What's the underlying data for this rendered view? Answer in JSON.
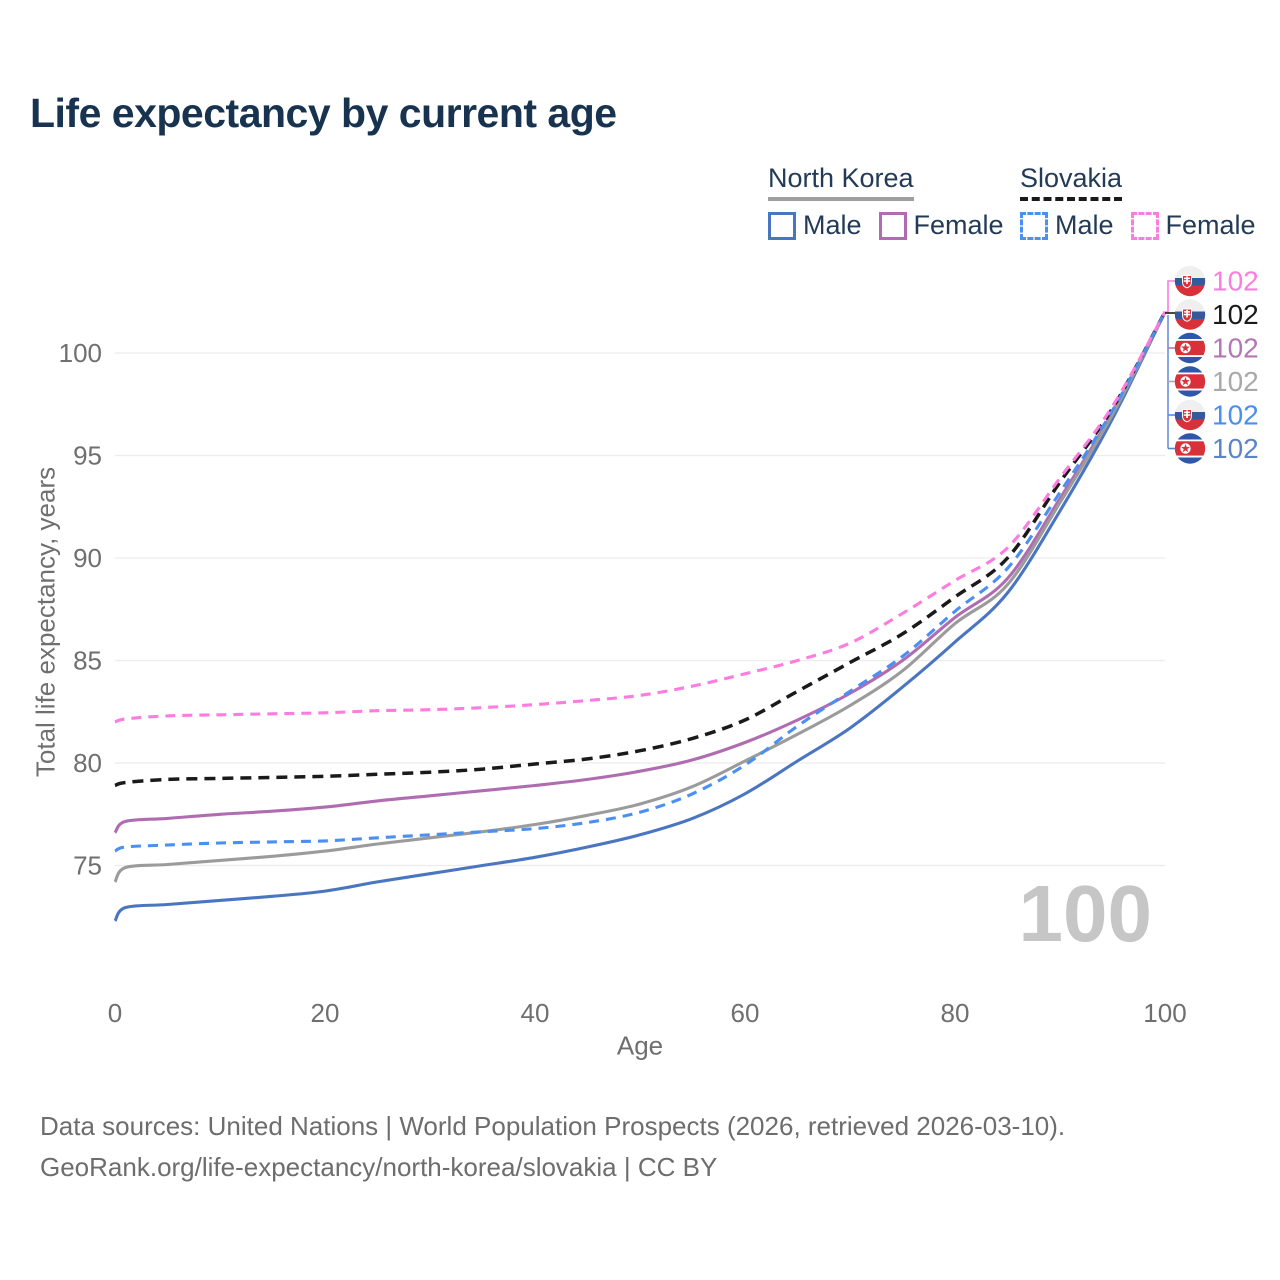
{
  "header": {
    "title": "Life expectancy by current age"
  },
  "legend": {
    "groups": [
      {
        "country": "North Korea",
        "line_style": "solid",
        "underline_color": "#9e9e9e",
        "items": [
          {
            "label": "Male",
            "color": "#4a76c1"
          },
          {
            "label": "Female",
            "color": "#b06cb1"
          }
        ]
      },
      {
        "country": "Slovakia",
        "line_style": "dashed",
        "underline_color": "#1a1a1a",
        "items": [
          {
            "label": "Male",
            "color": "#4a8ff2"
          },
          {
            "label": "Female",
            "color": "#fc7ce0"
          }
        ]
      }
    ]
  },
  "chart_data": {
    "type": "line",
    "title": "Life expectancy by current age",
    "xlabel": "Age",
    "ylabel": "Total life expectancy, years",
    "xlim": [
      0,
      100
    ],
    "ylim": [
      71.5,
      103.5
    ],
    "x_ticks": [
      0,
      20,
      40,
      60,
      80,
      100
    ],
    "y_ticks": [
      75,
      80,
      85,
      90,
      95,
      100
    ],
    "grid": "horizontal-only",
    "legend_position": "top-right",
    "age_counter_watermark": "100",
    "x": [
      0,
      1,
      5,
      10,
      15,
      20,
      25,
      30,
      35,
      40,
      45,
      50,
      55,
      60,
      65,
      70,
      75,
      80,
      85,
      90,
      95,
      100
    ],
    "series": [
      {
        "country": "North Korea",
        "legend_key": "Male",
        "color": "#4a76c1",
        "dash": "solid",
        "values": [
          72.3,
          72.95,
          73.1,
          73.3,
          73.5,
          73.75,
          74.2,
          74.6,
          75.0,
          75.4,
          75.9,
          76.5,
          77.3,
          78.5,
          80.1,
          81.7,
          83.7,
          85.9,
          88.3,
          92.3,
          96.8,
          102
        ]
      },
      {
        "country": "North Korea",
        "legend_key": "Female",
        "color": "#b06cb1",
        "dash": "solid",
        "values": [
          76.6,
          77.15,
          77.3,
          77.5,
          77.65,
          77.85,
          78.15,
          78.4,
          78.65,
          78.9,
          79.2,
          79.6,
          80.15,
          81.0,
          82.1,
          83.4,
          85.0,
          87.1,
          89.0,
          92.9,
          97.1,
          102
        ]
      },
      {
        "country": "North Korea",
        "legend_key": "North Korea",
        "color": "#9b9b9b",
        "dash": "solid",
        "values": [
          74.2,
          74.9,
          75.05,
          75.25,
          75.45,
          75.7,
          76.05,
          76.35,
          76.65,
          77.0,
          77.45,
          78.0,
          78.85,
          80.1,
          81.4,
          82.8,
          84.5,
          86.8,
          88.7,
          92.7,
          97.0,
          102
        ]
      },
      {
        "country": "Slovakia",
        "legend_key": "Slovakia",
        "color": "#1a1a1a",
        "dash": "11 7",
        "values": [
          78.9,
          79.05,
          79.2,
          79.25,
          79.3,
          79.35,
          79.45,
          79.55,
          79.7,
          79.95,
          80.2,
          80.6,
          81.2,
          82.1,
          83.5,
          84.9,
          86.3,
          88.1,
          90.0,
          93.7,
          97.3,
          102
        ]
      },
      {
        "country": "Slovakia",
        "legend_key": "Male",
        "color": "#4a8ff2",
        "dash": "10 7",
        "values": [
          75.7,
          75.9,
          76.0,
          76.1,
          76.15,
          76.2,
          76.35,
          76.5,
          76.65,
          76.8,
          77.1,
          77.6,
          78.5,
          79.9,
          81.8,
          83.5,
          85.2,
          87.4,
          89.5,
          93.2,
          97.2,
          102
        ]
      },
      {
        "country": "Slovakia",
        "legend_key": "Female",
        "color": "#fc7ce0",
        "dash": "10 7",
        "values": [
          82.0,
          82.15,
          82.3,
          82.35,
          82.4,
          82.45,
          82.55,
          82.6,
          82.7,
          82.85,
          83.05,
          83.3,
          83.75,
          84.35,
          85.0,
          85.85,
          87.3,
          88.9,
          90.5,
          93.9,
          97.4,
          102
        ]
      }
    ],
    "end_labels": [
      {
        "value": "102",
        "color": "#fc7ce0",
        "flag": "slovakia"
      },
      {
        "value": "102",
        "color": "#1a1a1a",
        "flag": "slovakia"
      },
      {
        "value": "102",
        "color": "#b476b4",
        "flag": "north-korea"
      },
      {
        "value": "102",
        "color": "#a9a9a9",
        "flag": "north-korea"
      },
      {
        "value": "102",
        "color": "#4a8ff2",
        "flag": "slovakia"
      },
      {
        "value": "102",
        "color": "#5b84c8",
        "flag": "north-korea"
      }
    ]
  },
  "footer": {
    "line1": "Data sources: United Nations | World Population Prospects (2026, retrieved 2026-03-10).",
    "line2": "GeoRank.org/life-expectancy/north-korea/slovakia | CC BY"
  }
}
